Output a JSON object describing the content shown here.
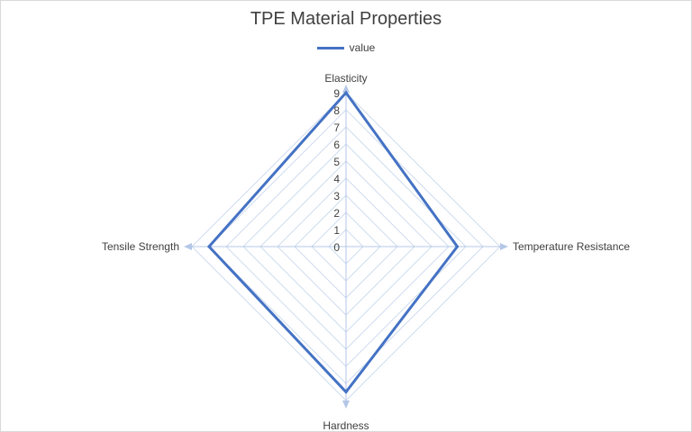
{
  "chart_data": {
    "type": "radar",
    "title": "TPE Material Properties",
    "categories": [
      "Elasticity",
      "Temperature Resistance",
      "Hardness",
      "Tensile Strength"
    ],
    "series": [
      {
        "name": "value",
        "values": [
          9,
          6.5,
          8.5,
          8
        ]
      }
    ],
    "rlim": [
      0,
      9
    ],
    "r_ticks": [
      0,
      1,
      2,
      3,
      4,
      5,
      6,
      7,
      8,
      9
    ],
    "legend": "top",
    "grid": true,
    "colors": {
      "series": "#4472c4",
      "grid": "#cfdcef",
      "axis": "#b4c7e7"
    }
  }
}
